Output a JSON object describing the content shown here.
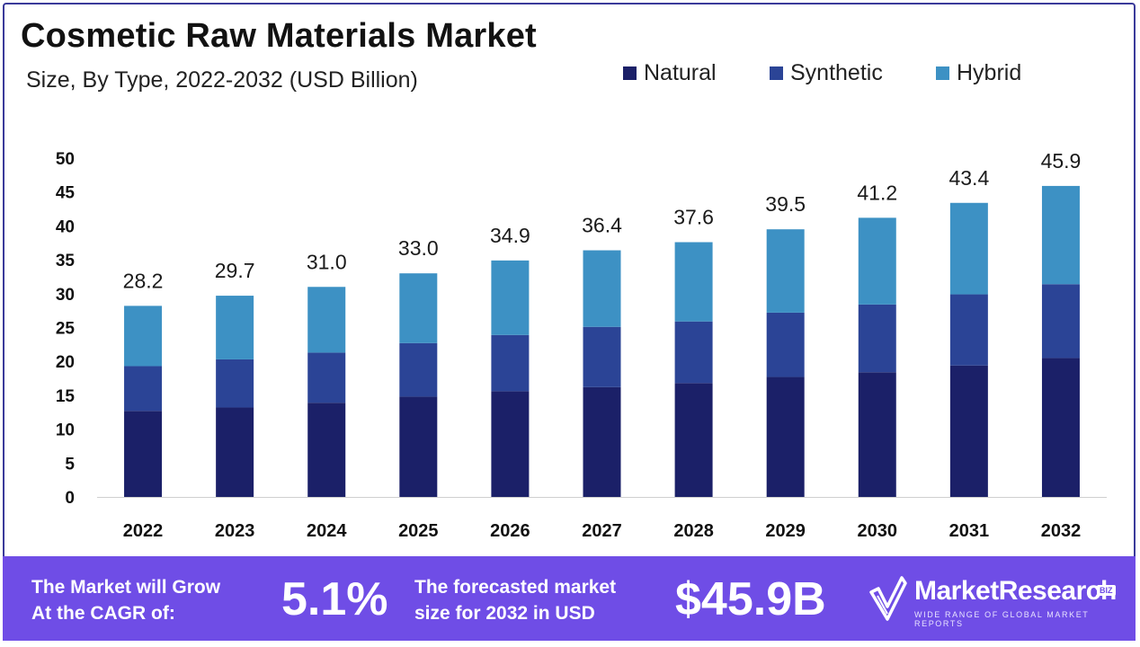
{
  "title": "Cosmetic Raw Materials Market",
  "subtitle": "Size, By Type, 2022-2032 (USD Billion)",
  "colors": {
    "natural": "#1b2068",
    "synthetic": "#2b4496",
    "hybrid": "#3d91c4",
    "footer": "#6f4de6"
  },
  "chart_data": {
    "type": "bar",
    "stacked": true,
    "title": "Cosmetic Raw Materials Market",
    "subtitle": "Size, By Type, 2022-2032 (USD Billion)",
    "xlabel": "",
    "ylabel": "",
    "ylim": [
      0,
      50
    ],
    "yticks": [
      0,
      5,
      10,
      15,
      20,
      25,
      30,
      35,
      40,
      45,
      50
    ],
    "legend_position": "top-right",
    "categories": [
      "2022",
      "2023",
      "2024",
      "2025",
      "2026",
      "2027",
      "2028",
      "2029",
      "2030",
      "2031",
      "2032"
    ],
    "series": [
      {
        "name": "Natural",
        "color_key": "natural",
        "values": [
          12.7,
          13.2,
          13.9,
          14.8,
          15.6,
          16.2,
          16.8,
          17.7,
          18.4,
          19.4,
          20.5
        ]
      },
      {
        "name": "Synthetic",
        "color_key": "synthetic",
        "values": [
          6.6,
          7.1,
          7.4,
          7.9,
          8.3,
          8.9,
          9.1,
          9.5,
          10.0,
          10.5,
          10.9
        ]
      },
      {
        "name": "Hybrid",
        "color_key": "hybrid",
        "values": [
          8.9,
          9.4,
          9.7,
          10.3,
          11.0,
          11.3,
          11.7,
          12.3,
          12.8,
          13.5,
          14.5
        ]
      }
    ],
    "totals": [
      "28.2",
      "29.7",
      "31.0",
      "33.0",
      "34.9",
      "36.4",
      "37.6",
      "39.5",
      "41.2",
      "43.4",
      "45.9"
    ]
  },
  "footer": {
    "cagr_label_line1": "The Market will Grow",
    "cagr_label_line2": "At the CAGR of:",
    "cagr_value": "5.1%",
    "forecast_label_line1": "The forecasted market",
    "forecast_label_line2": "size for 2032 in USD",
    "forecast_value": "$45.9B",
    "brand_name": "MarketResearch",
    "brand_badge": "BIZ",
    "brand_tagline": "WIDE RANGE OF GLOBAL MARKET REPORTS"
  }
}
